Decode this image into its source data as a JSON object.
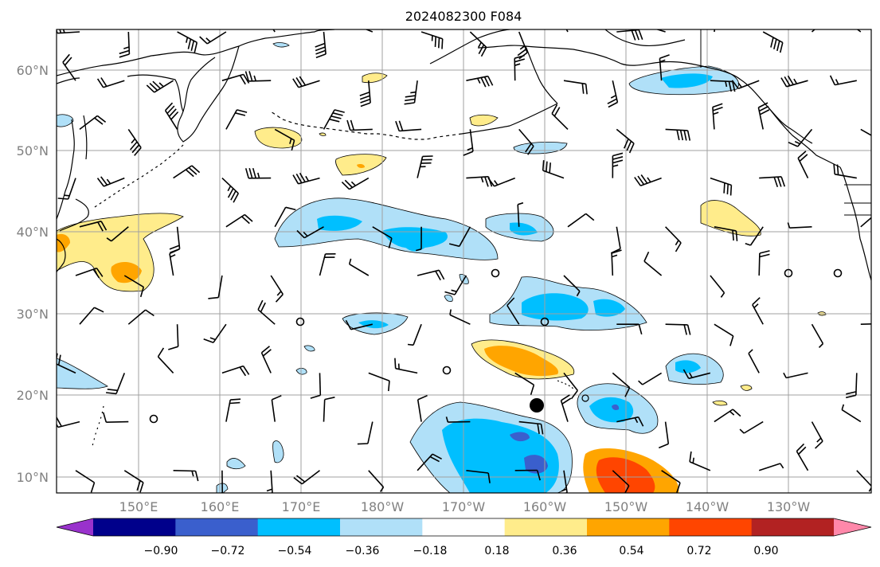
{
  "title": "2024082300 F084",
  "lat_labels": [
    "60°N",
    "50°N",
    "40°N",
    "30°N",
    "20°N",
    "10°N"
  ],
  "lon_labels": [
    "150°E",
    "160°E",
    "170°E",
    "180°W",
    "170°W",
    "160°W",
    "150°W",
    "140°W",
    "130°W"
  ],
  "colorbar": {
    "ticks": [
      "−0.90",
      "−0.72",
      "−0.54",
      "−0.36",
      "−0.18",
      "0.18",
      "0.36",
      "0.54",
      "0.72",
      "0.90"
    ],
    "colors": [
      "#9932cc",
      "#00008b",
      "#3a5fcd",
      "#00bfff",
      "#b0e0f8",
      "#ffffff",
      "#ffec8b",
      "#ffa500",
      "#ff4500",
      "#b22222",
      "#ff88aa"
    ]
  },
  "colors": {
    "grid": "#a0a0a0",
    "coast": "#000000",
    "axis_label": "#808080"
  }
}
